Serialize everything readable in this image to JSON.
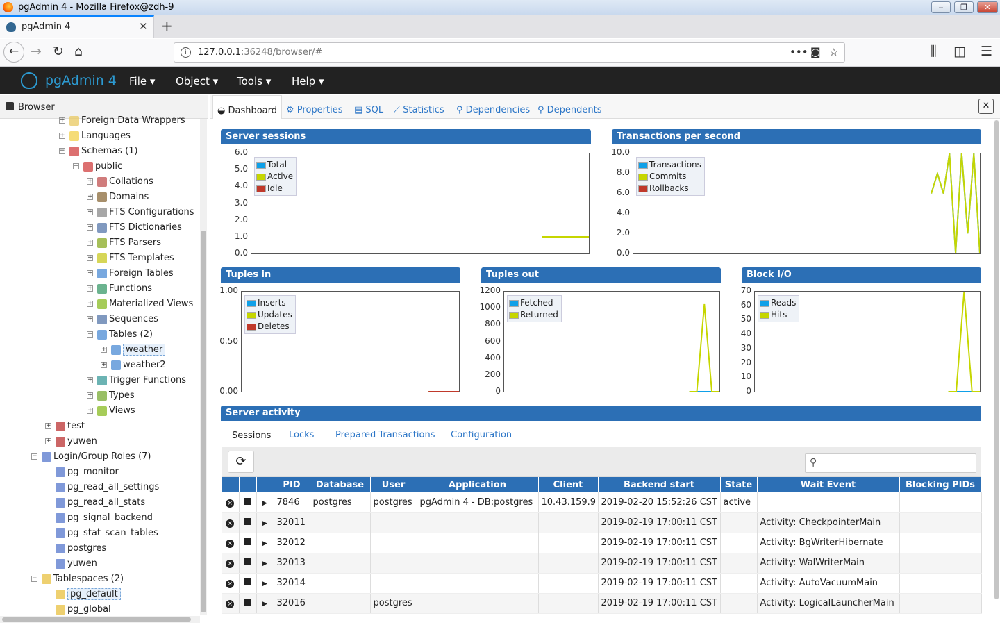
{
  "window": {
    "title": "pgAdmin 4 - Mozilla Firefox@zdh-9",
    "min": "‒",
    "max": "❐",
    "close": "✕"
  },
  "browser": {
    "tab_title": "pgAdmin 4",
    "tab_close": "✕",
    "new_tab": "+",
    "url_host": "127.0.0.1",
    "url_rest": ":36248/browser/#"
  },
  "pgadmin": {
    "brand": "pgAdmin 4",
    "menus": [
      "File",
      "Object",
      "Tools",
      "Help"
    ]
  },
  "left": {
    "title": "Browser",
    "tree": [
      {
        "label": "Foreign Data Wrappers",
        "toggle": "+"
      },
      {
        "label": "Languages",
        "toggle": "+"
      },
      {
        "label": "Schemas (1)",
        "toggle": "−"
      },
      {
        "label": "public",
        "toggle": "−"
      },
      {
        "label": "Collations",
        "toggle": "+"
      },
      {
        "label": "Domains",
        "toggle": "+"
      },
      {
        "label": "FTS Configurations",
        "toggle": "+"
      },
      {
        "label": "FTS Dictionaries",
        "toggle": "+"
      },
      {
        "label": "FTS Parsers",
        "toggle": "+"
      },
      {
        "label": "FTS Templates",
        "toggle": "+"
      },
      {
        "label": "Foreign Tables",
        "toggle": "+"
      },
      {
        "label": "Functions",
        "toggle": "+"
      },
      {
        "label": "Materialized Views",
        "toggle": "+"
      },
      {
        "label": "Sequences",
        "toggle": "+"
      },
      {
        "label": "Tables (2)",
        "toggle": "−"
      },
      {
        "label": "weather",
        "toggle": "+"
      },
      {
        "label": "weather2",
        "toggle": "+"
      },
      {
        "label": "Trigger Functions",
        "toggle": "+"
      },
      {
        "label": "Types",
        "toggle": "+"
      },
      {
        "label": "Views",
        "toggle": "+"
      },
      {
        "label": "test",
        "toggle": "+"
      },
      {
        "label": "yuwen",
        "toggle": "+"
      },
      {
        "label": "Login/Group Roles (7)",
        "toggle": "−"
      },
      {
        "label": "pg_monitor",
        "toggle": ""
      },
      {
        "label": "pg_read_all_settings",
        "toggle": ""
      },
      {
        "label": "pg_read_all_stats",
        "toggle": ""
      },
      {
        "label": "pg_signal_backend",
        "toggle": ""
      },
      {
        "label": "pg_stat_scan_tables",
        "toggle": ""
      },
      {
        "label": "postgres",
        "toggle": ""
      },
      {
        "label": "yuwen",
        "toggle": ""
      },
      {
        "label": "Tablespaces (2)",
        "toggle": "−"
      },
      {
        "label": "pg_default",
        "toggle": ""
      },
      {
        "label": "pg_global",
        "toggle": ""
      }
    ]
  },
  "right": {
    "tabs": [
      "Dashboard",
      "Properties",
      "SQL",
      "Statistics",
      "Dependencies",
      "Dependents"
    ],
    "close": "✕",
    "panels": {
      "sessions": {
        "title": "Server sessions",
        "yticks": [
          "6.0",
          "5.0",
          "4.0",
          "3.0",
          "2.0",
          "1.0",
          "0.0"
        ],
        "legend": [
          "Total",
          "Active",
          "Idle"
        ]
      },
      "tps": {
        "title": "Transactions per second",
        "yticks": [
          "10.0",
          "8.0",
          "6.0",
          "4.0",
          "2.0",
          "0.0"
        ],
        "legend": [
          "Transactions",
          "Commits",
          "Rollbacks"
        ]
      },
      "tuples_in": {
        "title": "Tuples in",
        "yticks": [
          "1.00",
          "0.50",
          "0.00"
        ],
        "legend": [
          "Inserts",
          "Updates",
          "Deletes"
        ]
      },
      "tuples_out": {
        "title": "Tuples out",
        "yticks": [
          "1200",
          "1000",
          "800",
          "600",
          "400",
          "200",
          "0"
        ],
        "legend": [
          "Fetched",
          "Returned"
        ]
      },
      "block_io": {
        "title": "Block I/O",
        "yticks": [
          "70",
          "60",
          "50",
          "40",
          "30",
          "20",
          "10",
          "0"
        ],
        "legend": [
          "Reads",
          "Hits"
        ]
      }
    },
    "activity": {
      "title": "Server activity",
      "tabs": [
        "Sessions",
        "Locks",
        "Prepared Transactions",
        "Configuration"
      ],
      "columns": [
        "PID",
        "Database",
        "User",
        "Application",
        "Client",
        "Backend start",
        "State",
        "Wait Event",
        "Blocking PIDs"
      ],
      "rows": [
        [
          "7846",
          "postgres",
          "postgres",
          "pgAdmin 4 - DB:postgres",
          "10.43.159.9",
          "2019-02-20 15:52:26 CST",
          "active",
          "",
          ""
        ],
        [
          "32011",
          "",
          "",
          "",
          "",
          "2019-02-19 17:00:11 CST",
          "",
          "Activity: CheckpointerMain",
          ""
        ],
        [
          "32012",
          "",
          "",
          "",
          "",
          "2019-02-19 17:00:11 CST",
          "",
          "Activity: BgWriterHibernate",
          ""
        ],
        [
          "32013",
          "",
          "",
          "",
          "",
          "2019-02-19 17:00:11 CST",
          "",
          "Activity: WalWriterMain",
          ""
        ],
        [
          "32014",
          "",
          "",
          "",
          "",
          "2019-02-19 17:00:11 CST",
          "",
          "Activity: AutoVacuumMain",
          ""
        ],
        [
          "32016",
          "",
          "postgres",
          "",
          "",
          "2019-02-19 17:00:11 CST",
          "",
          "Activity: LogicalLauncherMain",
          ""
        ]
      ]
    }
  },
  "colors": {
    "blue": "#0fa0e8",
    "green": "#c6d600",
    "red": "#c0392b",
    "header": "#2c6fb5"
  },
  "chart_data": [
    {
      "type": "line",
      "title": "Server sessions",
      "ylim": [
        0,
        6
      ],
      "series": [
        {
          "name": "Total",
          "values": [
            1,
            1,
            1,
            1,
            1,
            1,
            1,
            1,
            1,
            1
          ]
        },
        {
          "name": "Active",
          "values": [
            1,
            1,
            1,
            1,
            1,
            1,
            1,
            1,
            1,
            1
          ]
        },
        {
          "name": "Idle",
          "values": [
            0,
            0,
            0,
            0,
            0,
            0,
            0,
            0,
            0,
            0
          ]
        }
      ]
    },
    {
      "type": "line",
      "title": "Transactions per second",
      "ylim": [
        0,
        10
      ],
      "series": [
        {
          "name": "Transactions",
          "values": [
            6,
            8,
            6,
            10,
            0,
            10,
            2,
            10,
            0
          ]
        },
        {
          "name": "Commits",
          "values": [
            6,
            8,
            6,
            10,
            0,
            10,
            2,
            10,
            0
          ]
        },
        {
          "name": "Rollbacks",
          "values": [
            0,
            0,
            0,
            0,
            0,
            0,
            0,
            0,
            0
          ]
        }
      ]
    },
    {
      "type": "line",
      "title": "Tuples in",
      "ylim": [
        0,
        1
      ],
      "series": [
        {
          "name": "Inserts",
          "values": [
            0,
            0,
            0
          ]
        },
        {
          "name": "Updates",
          "values": [
            0,
            0,
            0
          ]
        },
        {
          "name": "Deletes",
          "values": [
            0,
            0,
            0
          ]
        }
      ]
    },
    {
      "type": "line",
      "title": "Tuples out",
      "ylim": [
        0,
        1200
      ],
      "series": [
        {
          "name": "Fetched",
          "values": [
            0,
            0,
            0,
            0,
            0
          ]
        },
        {
          "name": "Returned",
          "values": [
            0,
            0,
            1050,
            0,
            0
          ]
        }
      ]
    },
    {
      "type": "line",
      "title": "Block I/O",
      "ylim": [
        0,
        70
      ],
      "series": [
        {
          "name": "Reads",
          "values": [
            0,
            0,
            0,
            0,
            0
          ]
        },
        {
          "name": "Hits",
          "values": [
            0,
            0,
            70,
            0,
            0
          ]
        }
      ]
    }
  ]
}
